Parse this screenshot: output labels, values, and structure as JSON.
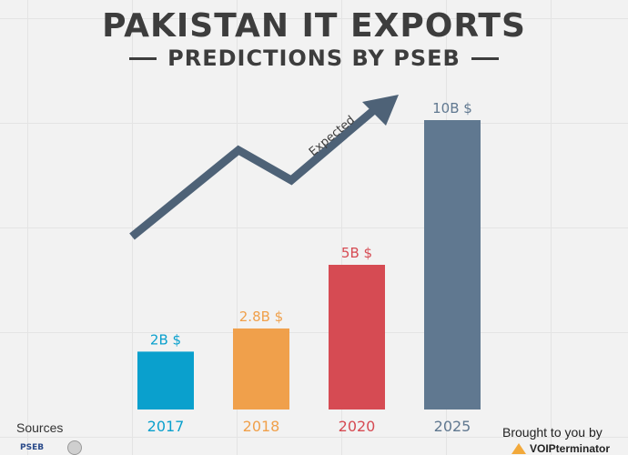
{
  "header": {
    "title": "PAKISTAN IT EXPORTS",
    "subtitle": "PREDICTIONS BY PSEB"
  },
  "chart_data": {
    "type": "bar",
    "categories": [
      "2017",
      "2018",
      "2020",
      "2025"
    ],
    "values": [
      2,
      2.8,
      5,
      10
    ],
    "data_labels": [
      "2B $",
      "2.8B $",
      "5B $",
      "10B $"
    ],
    "colors": [
      "#0aa0cd",
      "#f0a04b",
      "#d64b53",
      "#607890"
    ],
    "unit": "B $",
    "ylim": [
      0,
      10
    ],
    "grid": true,
    "trend_annotation": "Expected",
    "trend_color": "#4e6277"
  },
  "footer": {
    "sources_label": "Sources",
    "source_logo_text": "PSEB",
    "brought_by": "Brought to you by",
    "brand": "VOIPterminator"
  }
}
